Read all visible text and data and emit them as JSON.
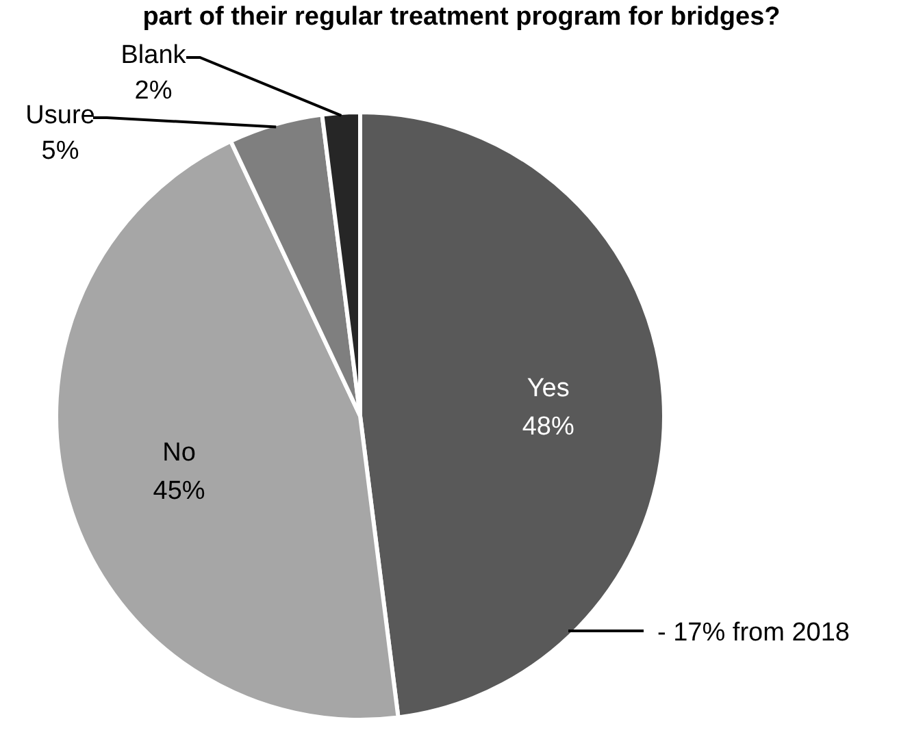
{
  "chart_data": {
    "type": "pie",
    "title": "part of their regular treatment program for bridges?",
    "categories": [
      "Yes",
      "No",
      "Usure",
      "Blank"
    ],
    "values": [
      48,
      45,
      5,
      2
    ],
    "colors": [
      "#595959",
      "#a6a6a6",
      "#7f7f7f",
      "#262626"
    ],
    "value_labels": [
      "48%",
      "45%",
      "5%",
      "2%"
    ],
    "annotations": [
      "- 17% from 2018"
    ]
  }
}
